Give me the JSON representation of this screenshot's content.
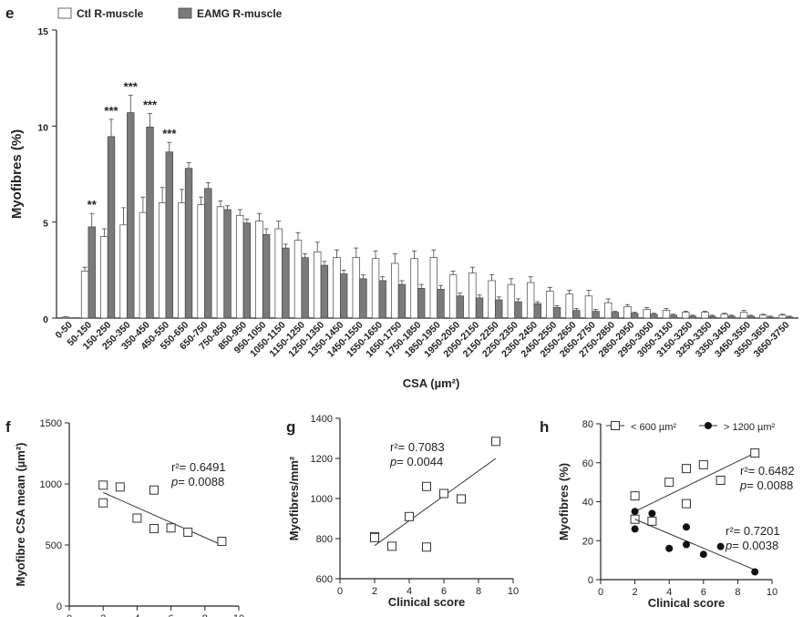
{
  "chart_data": [
    {
      "panel": "e",
      "type": "bar",
      "xlabel": "CSA (µm²)",
      "ylabel": "Myofibres (%)",
      "ylim": [
        0,
        15
      ],
      "yticks": [
        0,
        5,
        10,
        15
      ],
      "legend_position": "top-left",
      "categories": [
        "0-50",
        "50-150",
        "150-250",
        "250-350",
        "350-450",
        "450-550",
        "550-650",
        "650-750",
        "750-850",
        "850-950",
        "950-1050",
        "1050-1150",
        "1150-1250",
        "1250-1350",
        "1350-1450",
        "1450-1550",
        "1550-1650",
        "1650-1750",
        "1750-1850",
        "1850-1950",
        "1950-2050",
        "2050-2150",
        "2150-2250",
        "2250-2350",
        "2350-2450",
        "2450-2550",
        "2550-2650",
        "2650-2750",
        "2750-2850",
        "2850-2950",
        "2950-3050",
        "3050-3150",
        "3150-3250",
        "3250-3350",
        "3350-3450",
        "3450-3550",
        "3550-3650",
        "3650-3750"
      ],
      "series": [
        {
          "name": "Ctl R-muscle",
          "color": "#ffffff",
          "values": [
            0.05,
            2.45,
            4.25,
            4.85,
            5.5,
            6.0,
            6.0,
            5.9,
            5.8,
            5.35,
            5.05,
            4.65,
            4.05,
            3.45,
            3.15,
            3.15,
            3.1,
            2.85,
            3.1,
            3.15,
            2.25,
            2.35,
            1.95,
            1.75,
            1.85,
            1.4,
            1.25,
            1.15,
            0.8,
            0.6,
            0.45,
            0.4,
            0.3,
            0.3,
            0.2,
            0.3,
            0.15,
            0.15
          ],
          "errors": [
            0.02,
            0.2,
            0.4,
            0.9,
            0.8,
            0.8,
            0.7,
            0.4,
            0.3,
            0.3,
            0.4,
            0.4,
            0.4,
            0.5,
            0.4,
            0.5,
            0.4,
            0.5,
            0.4,
            0.4,
            0.2,
            0.3,
            0.3,
            0.3,
            0.3,
            0.2,
            0.2,
            0.3,
            0.2,
            0.1,
            0.1,
            0.1,
            0.05,
            0.05,
            0.05,
            0.1,
            0.05,
            0.05
          ]
        },
        {
          "name": "EAMG R-muscle",
          "color": "#7a7a7a",
          "values": [
            0,
            4.75,
            9.45,
            10.7,
            9.95,
            8.65,
            7.8,
            6.75,
            5.65,
            4.95,
            4.35,
            3.65,
            3.15,
            2.75,
            2.3,
            2.05,
            1.95,
            1.75,
            1.55,
            1.5,
            1.15,
            1.05,
            0.95,
            0.85,
            0.75,
            0.55,
            0.4,
            0.35,
            0.3,
            0.25,
            0.2,
            0.15,
            0.1,
            0.1,
            0.1,
            0.1,
            0.05,
            0.05
          ],
          "errors": [
            0,
            0.7,
            0.9,
            0.9,
            0.7,
            0.5,
            0.3,
            0.3,
            0.2,
            0.2,
            0.3,
            0.2,
            0.2,
            0.2,
            0.2,
            0.2,
            0.2,
            0.2,
            0.2,
            0.2,
            0.15,
            0.15,
            0.15,
            0.15,
            0.1,
            0.1,
            0.1,
            0.1,
            0.05,
            0.05,
            0.05,
            0.05,
            0.05,
            0.05,
            0.05,
            0.05,
            0.05,
            0.05
          ]
        }
      ],
      "significance": [
        {
          "category": "50-150",
          "label": "**"
        },
        {
          "category": "150-250",
          "label": "***"
        },
        {
          "category": "250-350",
          "label": "***"
        },
        {
          "category": "350-450",
          "label": "***"
        },
        {
          "category": "450-550",
          "label": "***"
        }
      ]
    },
    {
      "panel": "f",
      "type": "scatter",
      "xlabel": "Clinical score",
      "ylabel": "Myofibre CSA mean (µm²)",
      "xlim": [
        0,
        10
      ],
      "ylim": [
        0,
        1500
      ],
      "xticks": [
        0,
        2,
        4,
        6,
        8,
        10
      ],
      "yticks": [
        0,
        500,
        1000,
        1500
      ],
      "points": [
        [
          2,
          990
        ],
        [
          2,
          845
        ],
        [
          3,
          975
        ],
        [
          4,
          720
        ],
        [
          5,
          950
        ],
        [
          5,
          635
        ],
        [
          6,
          640
        ],
        [
          7,
          605
        ],
        [
          9,
          530
        ]
      ],
      "fit": [
        [
          2,
          930
        ],
        [
          9,
          500
        ]
      ],
      "annotation": {
        "r2": "r²= 0.6491",
        "p_label": "p",
        "p_value": "= 0.0088"
      }
    },
    {
      "panel": "g",
      "type": "scatter",
      "xlabel": "Clinical score",
      "ylabel": "Myofibres/mm²",
      "xlim": [
        0,
        10
      ],
      "ylim": [
        600,
        1400
      ],
      "xticks": [
        0,
        2,
        4,
        6,
        8,
        10
      ],
      "yticks": [
        600,
        800,
        1000,
        1200,
        1400
      ],
      "points": [
        [
          2,
          810
        ],
        [
          2,
          805
        ],
        [
          3,
          762
        ],
        [
          4,
          910
        ],
        [
          5,
          1060
        ],
        [
          5,
          758
        ],
        [
          6,
          1025
        ],
        [
          7,
          998
        ],
        [
          9,
          1285
        ]
      ],
      "fit": [
        [
          2,
          765
        ],
        [
          9,
          1200
        ]
      ],
      "annotation": {
        "r2": "r²= 0.7083",
        "p_label": "p",
        "p_value": "= 0.0044"
      }
    },
    {
      "panel": "h",
      "type": "scatter",
      "xlabel": "Clinical score",
      "ylabel": "Myofibres (%)",
      "xlim": [
        0,
        10
      ],
      "ylim": [
        0,
        80
      ],
      "xticks": [
        0,
        2,
        4,
        6,
        8,
        10
      ],
      "yticks": [
        0,
        20,
        40,
        60,
        80
      ],
      "legend_position": "top",
      "series": [
        {
          "name": "< 600 µm²",
          "marker": "open-square",
          "points": [
            [
              2,
              31
            ],
            [
              2,
              43
            ],
            [
              3,
              30
            ],
            [
              4,
              50
            ],
            [
              5,
              57
            ],
            [
              5,
              39
            ],
            [
              6,
              59
            ],
            [
              7,
              51
            ],
            [
              9,
              65
            ]
          ],
          "fit": [
            [
              2,
              35
            ],
            [
              9,
              65
            ]
          ],
          "annotation": {
            "r2": "r²= 0.6482",
            "p_label": "p",
            "p_value": "= 0.0088"
          }
        },
        {
          "name": "> 1200 µm²",
          "marker": "filled-circle",
          "points": [
            [
              2,
              35
            ],
            [
              2,
              26
            ],
            [
              3,
              34
            ],
            [
              4,
              16
            ],
            [
              5,
              27
            ],
            [
              5,
              18
            ],
            [
              6,
              13
            ],
            [
              7,
              17
            ],
            [
              9,
              4
            ]
          ],
          "fit": [
            [
              2,
              31
            ],
            [
              9,
              5
            ]
          ],
          "annotation": {
            "r2": "r²= 0.7201",
            "p_label": "p",
            "p_value": "= 0.0038"
          }
        }
      ]
    }
  ]
}
